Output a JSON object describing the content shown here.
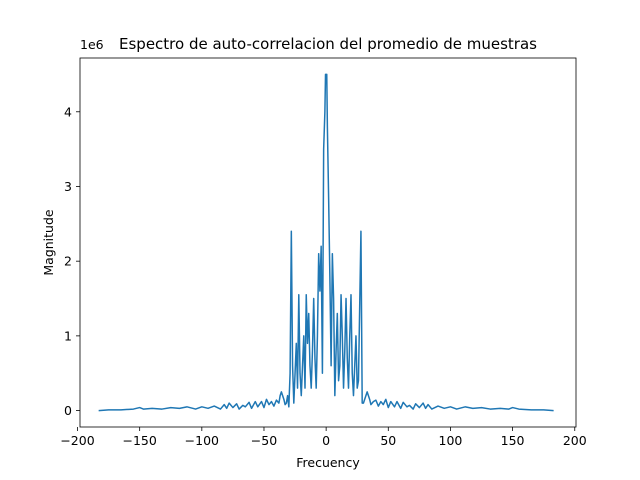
{
  "chart_data": {
    "type": "line",
    "title": "Espectro de auto-correlacion del promedio de muestras",
    "xlabel": "Frecuency",
    "ylabel": "Magnitude",
    "y_offset_label": "1e6",
    "xlim": [
      -198,
      201
    ],
    "ylim": [
      -0.22,
      4.72
    ],
    "x_ticks": [
      -200,
      -150,
      -100,
      -50,
      0,
      50,
      100,
      150,
      200
    ],
    "x_tick_labels": [
      "−200",
      "−150",
      "−100",
      "−50",
      "0",
      "50",
      "100",
      "150",
      "200"
    ],
    "y_ticks": [
      0,
      1,
      2,
      3,
      4
    ],
    "y_tick_labels": [
      "0",
      "1",
      "2",
      "3",
      "4"
    ],
    "grid": false,
    "series": [
      {
        "color": "#1f77b4",
        "x": [
          -183,
          -175,
          -165,
          -155,
          -150,
          -147,
          -140,
          -132,
          -125,
          -118,
          -112,
          -105,
          -100,
          -95,
          -90,
          -85,
          -82,
          -80,
          -78,
          -75,
          -72,
          -70,
          -67,
          -65,
          -62,
          -60,
          -57,
          -55,
          -52,
          -50,
          -48,
          -46,
          -44,
          -42,
          -40,
          -38,
          -37,
          -36,
          -35,
          -34,
          -33,
          -32,
          -31,
          -30,
          -29,
          -28,
          -27,
          -26,
          -25,
          -24,
          -23,
          -22,
          -21,
          -20,
          -19,
          -18,
          -17,
          -16,
          -15,
          -14,
          -13,
          -12,
          -11,
          -10,
          -9,
          -8,
          -7,
          -6,
          -5,
          -4,
          -3,
          -2,
          -1,
          -0.5,
          0,
          0.5,
          1,
          2,
          3,
          4,
          5,
          6,
          7,
          8,
          9,
          10,
          11,
          12,
          13,
          14,
          15,
          16,
          17,
          18,
          19,
          20,
          21,
          22,
          23,
          24,
          25,
          26,
          27,
          28,
          29,
          30,
          31,
          32,
          33,
          34,
          35,
          36,
          37,
          38,
          40,
          42,
          44,
          46,
          48,
          50,
          52,
          55,
          57,
          60,
          62,
          65,
          67,
          70,
          72,
          75,
          78,
          80,
          82,
          85,
          90,
          95,
          100,
          105,
          112,
          118,
          125,
          132,
          140,
          147,
          150,
          155,
          165,
          175,
          183
        ],
        "y": [
          0.0,
          0.01,
          0.01,
          0.02,
          0.04,
          0.02,
          0.03,
          0.02,
          0.04,
          0.03,
          0.05,
          0.02,
          0.05,
          0.03,
          0.06,
          0.02,
          0.08,
          0.03,
          0.1,
          0.04,
          0.09,
          0.02,
          0.07,
          0.05,
          0.11,
          0.03,
          0.12,
          0.05,
          0.12,
          0.04,
          0.15,
          0.08,
          0.12,
          0.06,
          0.14,
          0.1,
          0.2,
          0.25,
          0.2,
          0.15,
          0.08,
          0.1,
          0.2,
          0.05,
          0.5,
          2.4,
          0.6,
          0.1,
          0.5,
          0.9,
          0.3,
          1.55,
          0.5,
          0.2,
          0.6,
          1.0,
          0.3,
          1.55,
          0.9,
          1.3,
          0.6,
          0.3,
          0.8,
          1.5,
          0.7,
          0.3,
          1.0,
          2.1,
          1.6,
          2.2,
          0.5,
          3.5,
          4.0,
          4.5,
          4.5,
          4.5,
          3.8,
          2.85,
          1.8,
          0.6,
          2.1,
          1.5,
          0.2,
          0.8,
          1.3,
          0.4,
          0.6,
          1.55,
          1.0,
          0.3,
          0.8,
          1.5,
          0.7,
          0.3,
          1.0,
          1.55,
          0.5,
          0.2,
          0.6,
          1.0,
          0.3,
          0.4,
          1.4,
          2.4,
          0.1,
          0.1,
          0.15,
          0.2,
          0.25,
          0.2,
          0.15,
          0.08,
          0.1,
          0.12,
          0.14,
          0.06,
          0.12,
          0.08,
          0.15,
          0.04,
          0.12,
          0.05,
          0.12,
          0.03,
          0.11,
          0.05,
          0.07,
          0.02,
          0.09,
          0.04,
          0.1,
          0.03,
          0.08,
          0.02,
          0.06,
          0.03,
          0.05,
          0.02,
          0.05,
          0.03,
          0.04,
          0.02,
          0.03,
          0.02,
          0.04,
          0.02,
          0.01,
          0.01,
          0.0
        ]
      }
    ]
  }
}
